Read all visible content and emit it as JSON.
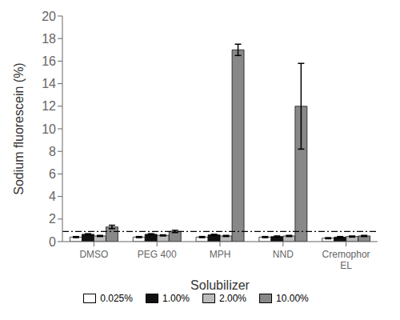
{
  "chart_data": {
    "type": "bar",
    "xlabel": "Solubilizer",
    "ylabel": "Sodium fluorescein (%)",
    "categories": [
      "DMSO",
      "PEG 400",
      "MPH",
      "NND",
      "Cremophor\nEL"
    ],
    "series": [
      {
        "name": "0.025%",
        "color": "white",
        "values": [
          0.4,
          0.4,
          0.4,
          0.4,
          0.3
        ],
        "errors": [
          0.05,
          0.05,
          0.05,
          0.05,
          0.05
        ]
      },
      {
        "name": "1.00%",
        "color": "#111111",
        "values": [
          0.65,
          0.65,
          0.6,
          0.45,
          0.4
        ],
        "errors": [
          0.05,
          0.05,
          0.05,
          0.05,
          0.05
        ]
      },
      {
        "name": "2.00%",
        "color": "#bbbbbb",
        "values": [
          0.5,
          0.55,
          0.5,
          0.5,
          0.45
        ],
        "errors": [
          0.05,
          0.05,
          0.05,
          0.05,
          0.05
        ]
      },
      {
        "name": "10.00%",
        "color": "#888888",
        "values": [
          1.3,
          0.9,
          17.0,
          12.0,
          0.5
        ],
        "errors": [
          0.15,
          0.1,
          0.5,
          3.8,
          0.05
        ]
      }
    ],
    "hline": 0.9,
    "ylim": [
      0,
      20
    ],
    "yticks": [
      0,
      2,
      4,
      6,
      8,
      10,
      12,
      14,
      16,
      18,
      20
    ],
    "grid": false,
    "legend": "bottom"
  }
}
